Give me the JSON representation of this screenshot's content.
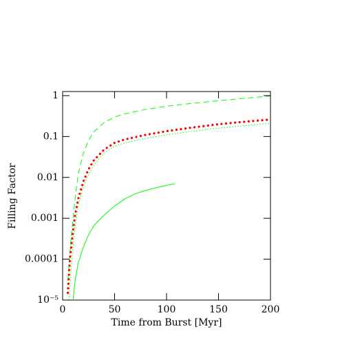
{
  "chart_data": {
    "type": "line",
    "xlabel": "Time from Burst [Myr]",
    "ylabel": "Filling Factor",
    "xlim": [
      0,
      200
    ],
    "ylim": [
      1e-05,
      1.26
    ],
    "ylog": true,
    "xticks": [
      0,
      50,
      100,
      150,
      200
    ],
    "yticks": [
      {
        "value": 1e-05,
        "label": "10⁻⁵"
      },
      0.0001,
      0.001,
      0.01,
      0.1,
      1
    ],
    "series": [
      {
        "color": "#00ff00",
        "style": "dashed",
        "x": [
          5,
          8,
          10,
          12,
          15,
          20,
          25,
          30,
          40,
          50,
          60,
          80,
          100,
          120,
          150,
          175,
          200
        ],
        "values": [
          3e-05,
          0.0003,
          0.001,
          0.003,
          0.012,
          0.04,
          0.08,
          0.13,
          0.22,
          0.3,
          0.36,
          0.46,
          0.55,
          0.63,
          0.75,
          0.86,
          0.98
        ]
      },
      {
        "color": "#ff0000",
        "style": "dots",
        "x": [
          5,
          7,
          10,
          12,
          15,
          20,
          25,
          30,
          40,
          50,
          60,
          80,
          100,
          120,
          150,
          175,
          200
        ],
        "values": [
          1.5e-05,
          0.0001,
          0.0005,
          0.0012,
          0.003,
          0.008,
          0.016,
          0.026,
          0.048,
          0.07,
          0.085,
          0.11,
          0.135,
          0.16,
          0.2,
          0.23,
          0.26
        ]
      },
      {
        "color": "#00ff00",
        "style": "dotted",
        "x": [
          6,
          8,
          10,
          12,
          15,
          20,
          25,
          30,
          40,
          50,
          60,
          80,
          100,
          120,
          150,
          175,
          200
        ],
        "values": [
          1e-05,
          5e-05,
          0.0002,
          0.0006,
          0.002,
          0.006,
          0.012,
          0.02,
          0.04,
          0.058,
          0.07,
          0.09,
          0.11,
          0.13,
          0.16,
          0.185,
          0.21
        ]
      },
      {
        "color": "#00ff00",
        "style": "solid",
        "x": [
          10,
          12,
          15,
          20,
          25,
          30,
          35,
          40,
          50,
          60,
          70,
          80,
          90,
          100,
          108
        ],
        "values": [
          1e-05,
          3e-05,
          8e-05,
          0.0002,
          0.0004,
          0.00065,
          0.0009,
          0.0012,
          0.002,
          0.003,
          0.004,
          0.0048,
          0.0056,
          0.0064,
          0.007
        ]
      }
    ]
  }
}
